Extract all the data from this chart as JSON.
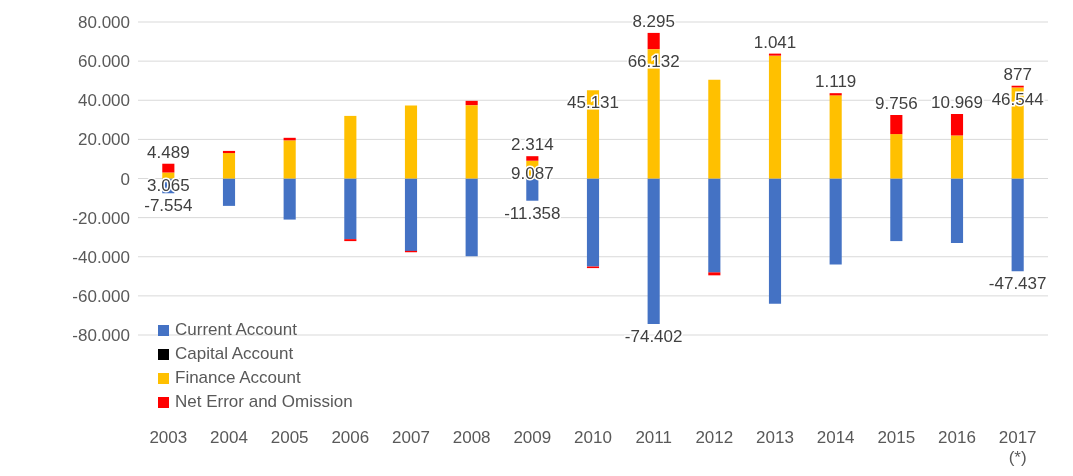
{
  "chart_data": {
    "type": "bar",
    "stacked": true,
    "categories": [
      "2003",
      "2004",
      "2005",
      "2006",
      "2007",
      "2008",
      "2009",
      "2010",
      "2011",
      "2012",
      "2013",
      "2014",
      "2015",
      "2016",
      "2017\n(*)"
    ],
    "series": [
      {
        "name": "Current Account",
        "color": "#4472c4",
        "values": [
          -7554,
          -14000,
          -21000,
          -31000,
          -37000,
          -39800,
          -11358,
          -45000,
          -74402,
          -48000,
          -64000,
          -44000,
          -32000,
          -33000,
          -47437
        ],
        "value_labels": [
          "-7.554",
          null,
          null,
          null,
          null,
          null,
          "-11.358",
          null,
          "-74.402",
          null,
          null,
          null,
          null,
          null,
          "-47.437"
        ]
      },
      {
        "name": "Capital Account",
        "color": "#000000",
        "values": [
          0,
          0,
          0,
          0,
          0,
          0,
          0,
          0,
          0,
          0,
          0,
          0,
          0,
          0,
          0
        ]
      },
      {
        "name": "Finance Account",
        "color": "#ffc000",
        "values": [
          3065,
          13000,
          19500,
          32000,
          37300,
          37500,
          9087,
          45131,
          66132,
          50500,
          62800,
          42500,
          22700,
          22000,
          46544
        ],
        "value_labels": [
          "3.065",
          null,
          null,
          null,
          null,
          null,
          "9.087",
          "45.131",
          "66.132",
          null,
          null,
          null,
          null,
          null,
          "46.544"
        ]
      },
      {
        "name": "Net Error and Omission",
        "color": "#ff0000",
        "values": [
          4489,
          1100,
          1300,
          -1000,
          -700,
          2200,
          2314,
          -800,
          8295,
          -1500,
          1041,
          1119,
          9756,
          10969,
          877
        ],
        "value_labels": [
          "4.489",
          null,
          null,
          null,
          null,
          null,
          "2.314",
          null,
          "8.295",
          null,
          "1.041",
          "1.119",
          "9.756",
          "10.969",
          "877"
        ]
      }
    ],
    "ylim": [
      -80000,
      80000
    ],
    "yticks": [
      {
        "value": -80000,
        "label": "-80.000"
      },
      {
        "value": -60000,
        "label": "-60.000"
      },
      {
        "value": -40000,
        "label": "-40.000"
      },
      {
        "value": -20000,
        "label": "-20.000"
      },
      {
        "value": 0,
        "label": "0"
      },
      {
        "value": 20000,
        "label": "20.000"
      },
      {
        "value": 40000,
        "label": "40.000"
      },
      {
        "value": 60000,
        "label": "60.000"
      },
      {
        "value": 80000,
        "label": "80.000"
      }
    ],
    "grid": "y",
    "legend": "bottom left"
  }
}
